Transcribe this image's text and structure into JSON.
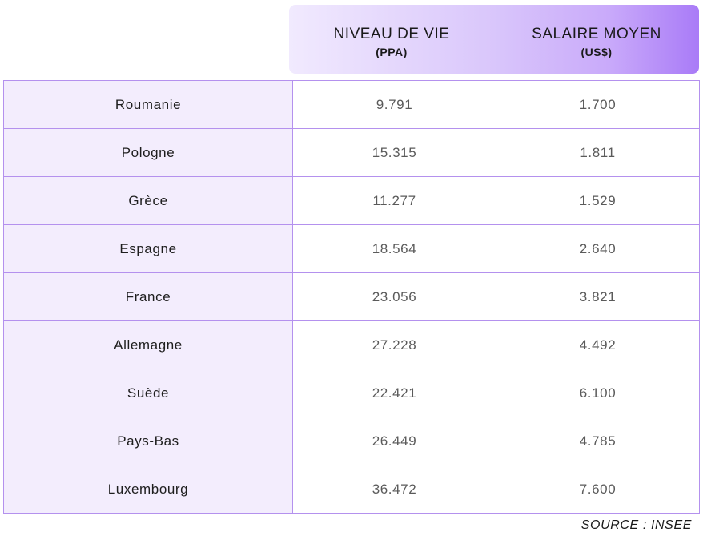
{
  "chart_data": {
    "type": "table",
    "columns": [
      {
        "label": "NIVEAU DE VIE",
        "unit": "(PPA)"
      },
      {
        "label": "SALAIRE MOYEN",
        "unit": "(US$)"
      }
    ],
    "rows": [
      {
        "country": "Roumanie",
        "niveau": "9.791",
        "salaire": "1.700"
      },
      {
        "country": "Pologne",
        "niveau": "15.315",
        "salaire": "1.811"
      },
      {
        "country": "Grèce",
        "niveau": "11.277",
        "salaire": "1.529"
      },
      {
        "country": "Espagne",
        "niveau": "18.564",
        "salaire": "2.640"
      },
      {
        "country": "France",
        "niveau": "23.056",
        "salaire": "3.821"
      },
      {
        "country": "Allemagne",
        "niveau": "27.228",
        "salaire": "4.492"
      },
      {
        "country": "Suède",
        "niveau": "22.421",
        "salaire": "6.100"
      },
      {
        "country": "Pays-Bas",
        "niveau": "26.449",
        "salaire": "4.785"
      },
      {
        "country": "Luxembourg",
        "niveau": "36.472",
        "salaire": "7.600"
      }
    ],
    "source": "SOURCE : INSEE"
  },
  "colors": {
    "accent": "#a97bf7",
    "row_fill": "#f3edfd",
    "border": "#b491ee"
  }
}
